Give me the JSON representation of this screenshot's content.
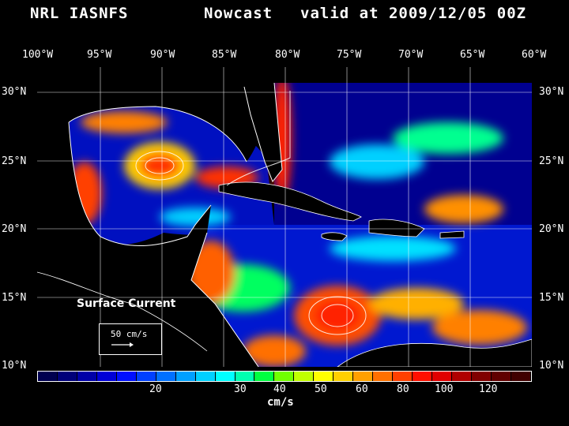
{
  "header": {
    "product": "NRL IASNFS",
    "kind": "Nowcast",
    "valid": "valid at 2009/12/05 00Z"
  },
  "lon_ticks": [
    "100°W",
    "95°W",
    "90°W",
    "85°W",
    "80°W",
    "75°W",
    "70°W",
    "65°W",
    "60°W"
  ],
  "lat_ticks": [
    "30°N",
    "25°N",
    "20°N",
    "15°N",
    "10°N"
  ],
  "map": {
    "label": "Surface Current",
    "lon_range": [
      -100,
      -60
    ],
    "lat_range": [
      10,
      31
    ],
    "reference_vector": "50 cm/s"
  },
  "colorbar": {
    "unit": "cm/s",
    "labels": [
      "20",
      "30",
      "40",
      "50",
      "60",
      "80",
      "100",
      "120"
    ],
    "colors": [
      "#000050",
      "#00007a",
      "#0000a8",
      "#0000d8",
      "#0010ff",
      "#0040ff",
      "#0070ff",
      "#00a0ff",
      "#00d0ff",
      "#00ffff",
      "#00ffb0",
      "#00ff40",
      "#70ff00",
      "#c0ff00",
      "#ffff00",
      "#ffd000",
      "#ffa000",
      "#ff7000",
      "#ff4000",
      "#ff1000",
      "#e00000",
      "#b00000",
      "#800000",
      "#600000",
      "#400000"
    ]
  }
}
